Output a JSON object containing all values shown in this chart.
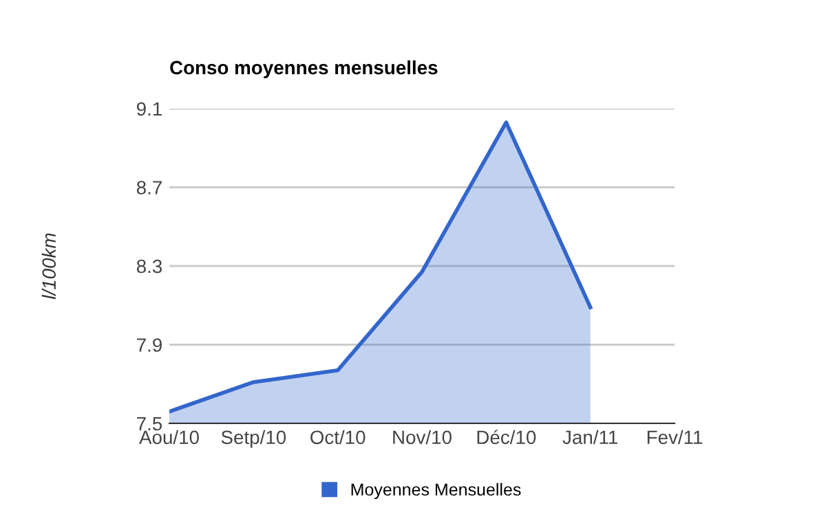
{
  "chart_data": {
    "type": "area",
    "title": "Conso moyennes mensuelles",
    "ylabel": "l/100km",
    "categories": [
      "Aou/10",
      "Setp/10",
      "Oct/10",
      "Nov/10",
      "Déc/10",
      "Jan/11",
      "Fev/11"
    ],
    "series": [
      {
        "name": "Moyennes Mensuelles",
        "color": "#3366cc",
        "values": [
          7.56,
          7.71,
          7.77,
          8.27,
          9.03,
          8.09,
          null
        ]
      }
    ],
    "ylim": [
      7.5,
      9.1
    ],
    "yticks": [
      7.5,
      7.9,
      8.3,
      8.7,
      9.1
    ],
    "grid": "y",
    "legend": "bottom"
  }
}
